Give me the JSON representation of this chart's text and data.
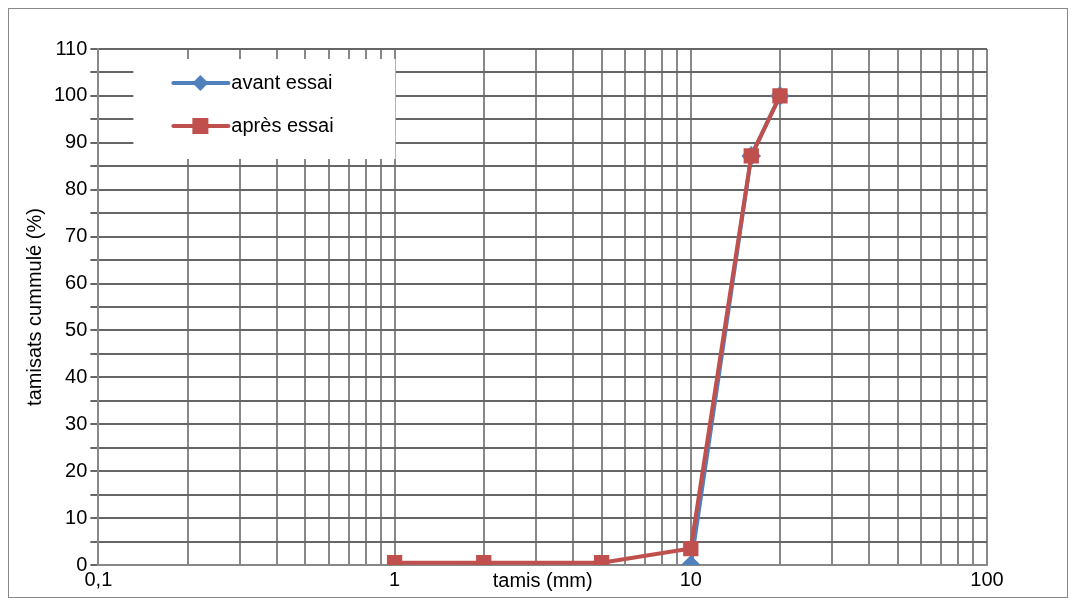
{
  "chart_data": {
    "type": "line",
    "xlabel": "tamis (mm)",
    "ylabel": "tamisats cummulé (%)",
    "x": [
      1,
      2,
      5,
      10,
      16,
      20
    ],
    "series": [
      {
        "name": "avant essai",
        "color": "#4f81bd",
        "marker": "diamond",
        "values": [
          null,
          null,
          null,
          0,
          87.2,
          100
        ]
      },
      {
        "name": "après essai",
        "color": "#c0504d",
        "marker": "square",
        "values": [
          0.5,
          0.5,
          0.5,
          3.5,
          87.2,
          100
        ]
      }
    ],
    "log": "x",
    "xlim": [
      0.1,
      100
    ],
    "xticks": [
      {
        "value": 0.1,
        "label": "0,1"
      },
      {
        "value": 0.2,
        "label": null
      },
      {
        "value": 0.3,
        "label": null
      },
      {
        "value": 0.4,
        "label": null
      },
      {
        "value": 0.5,
        "label": null
      },
      {
        "value": 0.6,
        "label": null
      },
      {
        "value": 0.7,
        "label": null
      },
      {
        "value": 0.8,
        "label": null
      },
      {
        "value": 0.9,
        "label": null
      },
      1,
      {
        "value": 2,
        "label": null
      },
      {
        "value": 3,
        "label": null
      },
      {
        "value": 4,
        "label": null
      },
      {
        "value": 5,
        "label": null
      },
      {
        "value": 6,
        "label": null
      },
      {
        "value": 7,
        "label": null
      },
      {
        "value": 8,
        "label": null
      },
      {
        "value": 9,
        "label": null
      },
      10,
      {
        "value": 20,
        "label": null
      },
      {
        "value": 30,
        "label": null
      },
      {
        "value": 40,
        "label": null
      },
      {
        "value": 50,
        "label": null
      },
      {
        "value": 60,
        "label": null
      },
      {
        "value": 70,
        "label": null
      },
      {
        "value": 80,
        "label": null
      },
      {
        "value": 90,
        "label": null
      },
      100
    ],
    "ylim": [
      0,
      110
    ],
    "yticks": [
      0,
      {
        "value": 5,
        "label": null
      },
      10,
      {
        "value": 15,
        "label": null
      },
      20,
      {
        "value": 25,
        "label": null
      },
      30,
      {
        "value": 35,
        "label": null
      },
      40,
      {
        "value": 45,
        "label": null
      },
      50,
      {
        "value": 55,
        "label": null
      },
      60,
      {
        "value": 65,
        "label": null
      },
      70,
      {
        "value": 75,
        "label": null
      },
      80,
      {
        "value": 85,
        "label": null
      },
      90,
      {
        "value": 95,
        "label": null
      },
      100,
      {
        "value": 105,
        "label": null
      },
      110
    ],
    "grid": true,
    "legend": "top left"
  }
}
